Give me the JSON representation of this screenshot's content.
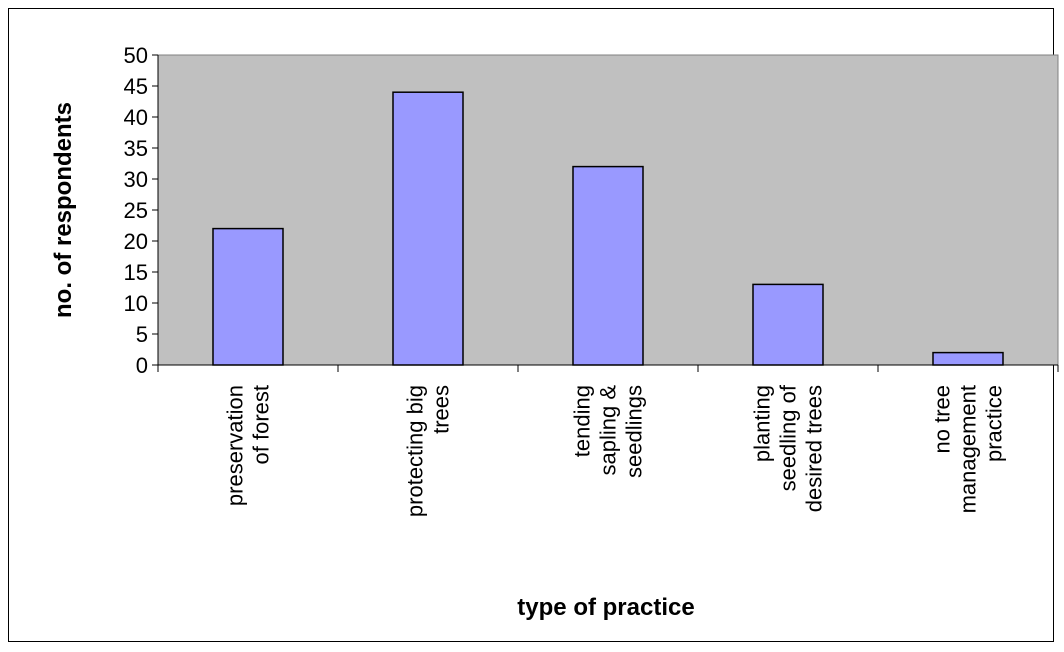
{
  "chart_data": {
    "type": "bar",
    "title": "",
    "xlabel": "type of practice",
    "ylabel": "no. of respondents",
    "ylim": [
      0,
      50
    ],
    "yticks": [
      0,
      5,
      10,
      15,
      20,
      25,
      30,
      35,
      40,
      45,
      50
    ],
    "grid": false,
    "legend": "none",
    "categories": [
      [
        "preservation",
        "of forest"
      ],
      [
        "protecting big",
        "trees"
      ],
      [
        "tending",
        "sapling &",
        "seedlings"
      ],
      [
        "planting",
        "seedling of",
        "desired trees"
      ],
      [
        "no tree",
        "management",
        "practice"
      ]
    ],
    "values": [
      22,
      44,
      32,
      13,
      2
    ],
    "colors": {
      "bar_fill": "#9999ff",
      "plot_bg": "#c0c0c0",
      "bar_stroke": "#000000"
    }
  }
}
